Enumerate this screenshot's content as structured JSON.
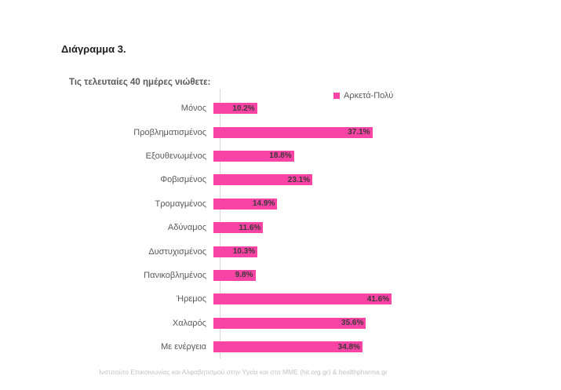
{
  "title": "Διάγραμμα 3.",
  "chart_data": {
    "type": "bar",
    "orientation": "horizontal",
    "title": "Τις τελευταίες 40 ημέρες νιώθετε:",
    "legend": {
      "label": "Αρκετά-Πολύ",
      "position": "top-right",
      "color": "#fa44a5"
    },
    "categories": [
      "Μόνος",
      "Προβληματισμένος",
      "Εξουθενωμένος",
      "Φοβισμένος",
      "Τρομαγμένος",
      "Αδύναμος",
      "Δυστυχισμένος",
      "Πανικοβλημένος",
      "Ήρεμος",
      "Χαλαρός",
      "Με ενέργεια"
    ],
    "values": [
      10.2,
      37.1,
      18.8,
      23.1,
      14.9,
      11.6,
      10.3,
      9.8,
      41.6,
      35.6,
      34.8
    ],
    "value_labels": [
      "10.2%",
      "37.1%",
      "18.8%",
      "23.1%",
      "14.9%",
      "11.6%",
      "10.3%",
      "9.8%",
      "41.6%",
      "35.6%",
      "34.8%"
    ],
    "xlim": [
      0,
      45
    ],
    "grid": false,
    "bar_color": "#fa44a5",
    "value_label_color": "#3b3838",
    "axis_line_color": "#d9d9d9"
  },
  "footer": {
    "source": "Ινστιτούτο Επικοινωνίας και Αλφαβητισμού στην Υγεία και στα ΜΜΕ (hit.org.gr) & healthpharma.gr"
  }
}
